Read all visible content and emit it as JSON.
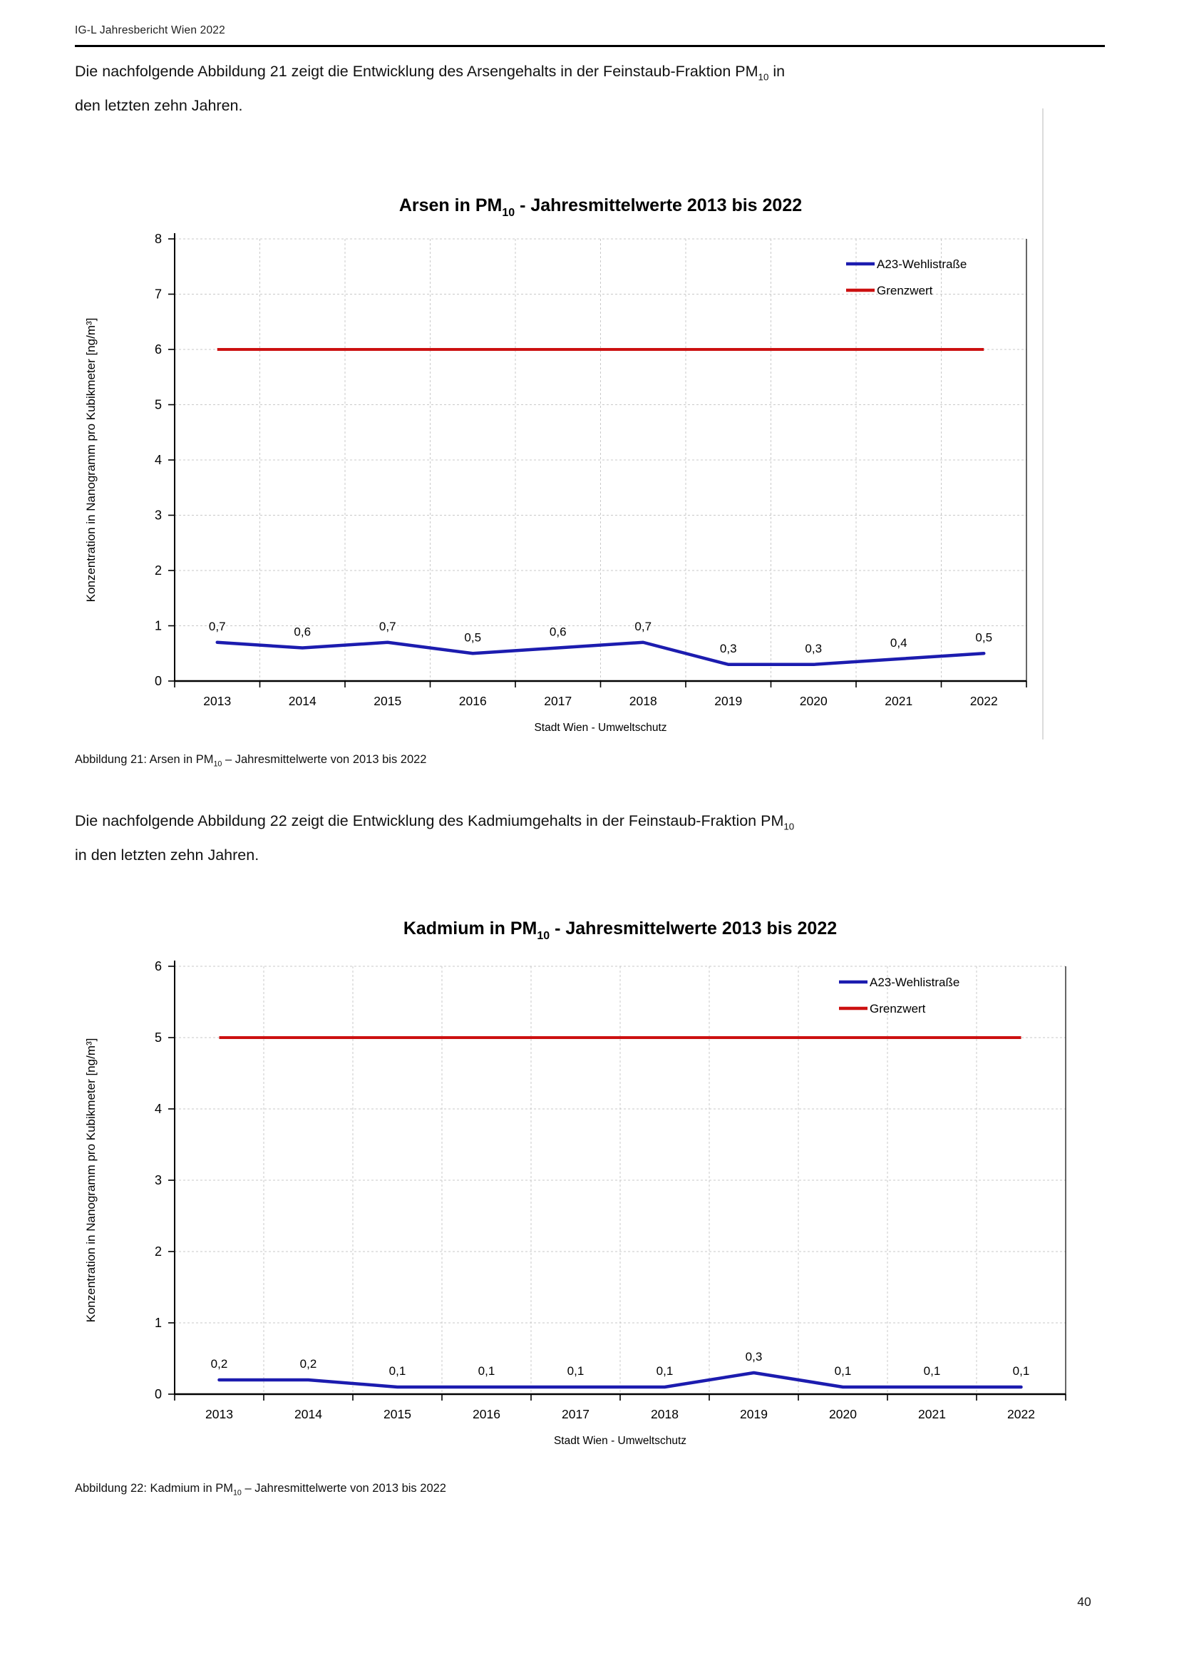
{
  "header": {
    "title": "IG-L Jahresbericht Wien 2022"
  },
  "page": {
    "number": "40"
  },
  "intro1": {
    "line1_pre": "Die nachfolgende Abbildung 21 zeigt die Entwicklung des Arsengehalts in der Feinstaub-Fraktion PM",
    "sub": "10",
    "line1_post": " in",
    "line2": "den letzten zehn Jahren."
  },
  "caption1": {
    "pre": "Abbildung 21: Arsen in PM",
    "sub": "10",
    "post": " – Jahresmittelwerte von 2013 bis 2022"
  },
  "intro2": {
    "line1_pre": "Die nachfolgende Abbildung 22 zeigt die Entwicklung des Kadmiumgehalts in der Feinstaub-Fraktion PM",
    "sub": "10",
    "line1_post": "",
    "line2": "in den letzten zehn Jahren."
  },
  "caption2": {
    "pre": "Abbildung 22: Kadmium in PM",
    "sub": "10",
    "post": " – Jahresmittelwerte von 2013 bis 2022"
  },
  "chart_data": [
    {
      "type": "line",
      "title_parts": {
        "pre": "Arsen in PM",
        "sub": "10",
        "post": " - Jahresmittelwerte 2013 bis 2022"
      },
      "categories": [
        "2013",
        "2014",
        "2015",
        "2016",
        "2017",
        "2018",
        "2019",
        "2020",
        "2021",
        "2022"
      ],
      "series": [
        {
          "name": "A23-Wehlistraße",
          "color": "#1c1caf",
          "values": [
            0.7,
            0.6,
            0.7,
            0.5,
            0.6,
            0.7,
            0.3,
            0.3,
            0.4,
            0.5
          ]
        }
      ],
      "limit_line": {
        "name": "Grenzwert",
        "color": "#cc1111",
        "value": 6
      },
      "ylabel": "Konzentration in Nanogramm pro Kubikmeter [ng/m³]",
      "xlabel": "Stadt Wien - Umweltschutz",
      "ylim": [
        0,
        8
      ],
      "ytick_step": 1,
      "grid": true,
      "data_labels": true,
      "decimal_comma": true,
      "legend_position": "top-right"
    },
    {
      "type": "line",
      "title_parts": {
        "pre": "Kadmium in PM",
        "sub": "10",
        "post": " - Jahresmittelwerte 2013 bis 2022"
      },
      "categories": [
        "2013",
        "2014",
        "2015",
        "2016",
        "2017",
        "2018",
        "2019",
        "2020",
        "2021",
        "2022"
      ],
      "series": [
        {
          "name": "A23-Wehlistraße",
          "color": "#1c1caf",
          "values": [
            0.2,
            0.2,
            0.1,
            0.1,
            0.1,
            0.1,
            0.3,
            0.1,
            0.1,
            0.1
          ]
        }
      ],
      "limit_line": {
        "name": "Grenzwert",
        "color": "#cc1111",
        "value": 5
      },
      "ylabel": "Konzentration in Nanogramm pro Kubikmeter [ng/m³]",
      "xlabel": "Stadt Wien - Umweltschutz",
      "ylim": [
        0,
        6
      ],
      "ytick_step": 1,
      "grid": true,
      "data_labels": true,
      "decimal_comma": true,
      "legend_position": "top-right"
    }
  ]
}
